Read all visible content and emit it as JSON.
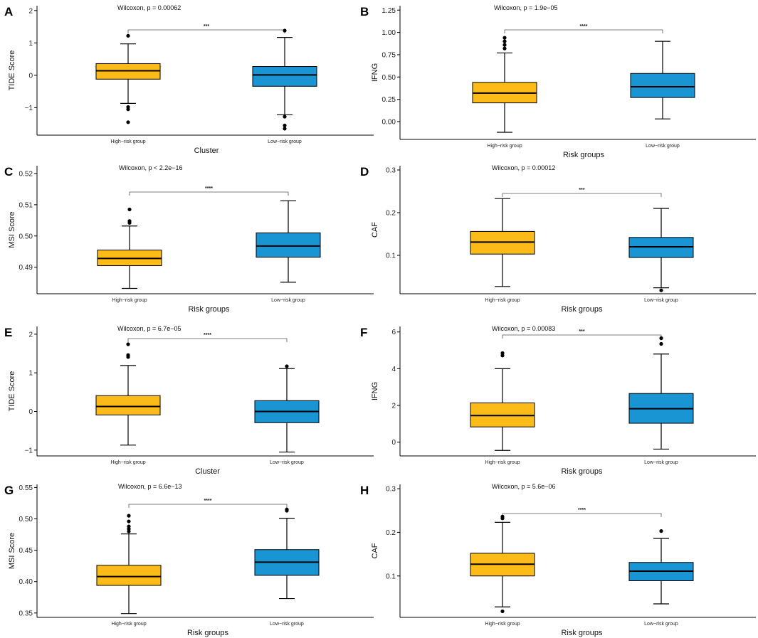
{
  "figure": {
    "background": "#ffffff"
  },
  "colors": {
    "high": "#FDBB17",
    "low": "#1A95D4",
    "stroke": "#000000"
  },
  "chart_data": [
    {
      "panel": "A",
      "type": "box",
      "ylabel": "TIDE Score",
      "xlabel": "Cluster",
      "test_label": "Wilcoxon, p = 0.00062",
      "signif": "***",
      "categories": [
        "High−risk group",
        "Low−risk group"
      ],
      "yticks": [
        -1,
        0,
        1,
        2
      ],
      "ytick_labels": [
        "−1",
        "0",
        "1",
        "2"
      ],
      "ylim": [
        -1.85,
        2.15
      ],
      "boxes": [
        {
          "min": -0.87,
          "q1": -0.12,
          "median": 0.14,
          "q3": 0.36,
          "max": 0.97,
          "outliers": [
            1.22,
            -0.98,
            -1.05,
            -1.45
          ]
        },
        {
          "min": -1.22,
          "q1": -0.34,
          "median": 0.01,
          "q3": 0.27,
          "max": 1.17,
          "outliers": [
            1.38,
            -1.28,
            -1.55,
            -1.65
          ]
        }
      ]
    },
    {
      "panel": "B",
      "type": "box",
      "ylabel": "IFNG",
      "xlabel": "Risk groups",
      "test_label": "Wilcoxon, p = 1.9e−05",
      "signif": "****",
      "categories": [
        "High−risk group",
        "Low−risk group"
      ],
      "yticks": [
        0,
        0.25,
        0.5,
        0.75,
        1.0,
        1.25
      ],
      "ytick_labels": [
        "0.00",
        "0.25",
        "0.50",
        "0.75",
        "1.00",
        "1.25"
      ],
      "ylim": [
        -0.2,
        1.3
      ],
      "boxes": [
        {
          "min": -0.12,
          "q1": 0.21,
          "median": 0.32,
          "q3": 0.44,
          "max": 0.77,
          "outliers": [
            0.82,
            0.86,
            0.9,
            0.94
          ]
        },
        {
          "min": 0.03,
          "q1": 0.27,
          "median": 0.39,
          "q3": 0.54,
          "max": 0.9,
          "outliers": []
        }
      ]
    },
    {
      "panel": "C",
      "type": "box",
      "ylabel": "MSI Score",
      "xlabel": "Risk groups",
      "test_label": "Wilcoxon, p < 2.2e−16",
      "signif": "****",
      "categories": [
        "High−risk group",
        "Low−risk group"
      ],
      "yticks": [
        0.49,
        0.5,
        0.51,
        0.52
      ],
      "ytick_labels": [
        "0.49",
        "0.50",
        "0.51",
        "0.52"
      ],
      "ylim": [
        0.4815,
        0.5225
      ],
      "boxes": [
        {
          "min": 0.4832,
          "q1": 0.4905,
          "median": 0.4928,
          "q3": 0.4955,
          "max": 0.5032,
          "outliers": [
            0.5042,
            0.5048,
            0.5085
          ]
        },
        {
          "min": 0.4852,
          "q1": 0.4932,
          "median": 0.4968,
          "q3": 0.501,
          "max": 0.5113,
          "outliers": []
        }
      ]
    },
    {
      "panel": "D",
      "type": "box",
      "ylabel": "CAF",
      "xlabel": "Risk groups",
      "test_label": "Wilcoxon, p = 0.00012",
      "signif": "***",
      "categories": [
        "High−risk group",
        "Low−risk group"
      ],
      "yticks": [
        0.1,
        0.2,
        0.3
      ],
      "ytick_labels": [
        "0.1",
        "0.2",
        "0.3"
      ],
      "ylim": [
        0.01,
        0.31
      ],
      "boxes": [
        {
          "min": 0.027,
          "q1": 0.103,
          "median": 0.131,
          "q3": 0.156,
          "max": 0.233,
          "outliers": []
        },
        {
          "min": 0.024,
          "q1": 0.095,
          "median": 0.12,
          "q3": 0.142,
          "max": 0.21,
          "outliers": [
            0.018
          ]
        }
      ]
    },
    {
      "panel": "E",
      "type": "box",
      "ylabel": "TIDE Score",
      "xlabel": "Cluster",
      "test_label": "Wilcoxon, p = 6.7e−05",
      "signif": "****",
      "categories": [
        "High−risk group",
        "Low−risk group"
      ],
      "yticks": [
        -1,
        0,
        1,
        2
      ],
      "ytick_labels": [
        "−1",
        "0",
        "1",
        "2"
      ],
      "ylim": [
        -1.15,
        2.2
      ],
      "boxes": [
        {
          "min": -0.87,
          "q1": -0.09,
          "median": 0.13,
          "q3": 0.41,
          "max": 1.19,
          "outliers": [
            1.41,
            1.46,
            1.74
          ]
        },
        {
          "min": -1.05,
          "q1": -0.29,
          "median": 0.0,
          "q3": 0.28,
          "max": 1.11,
          "outliers": [
            1.17
          ]
        }
      ]
    },
    {
      "panel": "F",
      "type": "box",
      "ylabel": "IFNG",
      "xlabel": "Risk groups",
      "test_label": "Wilcoxon, p = 0.00083",
      "signif": "***",
      "categories": [
        "High−risk group",
        "Low−risk group"
      ],
      "yticks": [
        0,
        2,
        4,
        6
      ],
      "ytick_labels": [
        "0",
        "2",
        "4",
        "6"
      ],
      "ylim": [
        -0.75,
        6.3
      ],
      "boxes": [
        {
          "min": -0.45,
          "q1": 0.83,
          "median": 1.45,
          "q3": 2.14,
          "max": 4.0,
          "outliers": [
            4.72,
            4.85
          ]
        },
        {
          "min": -0.38,
          "q1": 1.03,
          "median": 1.82,
          "q3": 2.65,
          "max": 4.8,
          "outliers": [
            5.35,
            5.66
          ]
        }
      ]
    },
    {
      "panel": "G",
      "type": "box",
      "ylabel": "MSI Score",
      "xlabel": "Risk groups",
      "test_label": "Wilcoxon, p = 6.6e−13",
      "signif": "****",
      "categories": [
        "High−risk group",
        "Low−risk group"
      ],
      "yticks": [
        0.35,
        0.4,
        0.45,
        0.5,
        0.55
      ],
      "ytick_labels": [
        "0.35",
        "0.40",
        "0.45",
        "0.50",
        "0.55"
      ],
      "ylim": [
        0.343,
        0.555
      ],
      "boxes": [
        {
          "min": 0.349,
          "q1": 0.394,
          "median": 0.408,
          "q3": 0.426,
          "max": 0.476,
          "outliers": [
            0.48,
            0.484,
            0.488,
            0.496,
            0.505
          ]
        },
        {
          "min": 0.373,
          "q1": 0.41,
          "median": 0.431,
          "q3": 0.451,
          "max": 0.501,
          "outliers": [
            0.513,
            0.515
          ]
        }
      ]
    },
    {
      "panel": "H",
      "type": "box",
      "ylabel": "CAF",
      "xlabel": "Risk groups",
      "test_label": "Wilcoxon, p = 5.6e−06",
      "signif": "****",
      "categories": [
        "High−risk group",
        "Low−risk group"
      ],
      "yticks": [
        0.1,
        0.2,
        0.3
      ],
      "ytick_labels": [
        "0.1",
        "0.2",
        "0.3"
      ],
      "ylim": [
        0.005,
        0.31
      ],
      "boxes": [
        {
          "min": 0.029,
          "q1": 0.1,
          "median": 0.127,
          "q3": 0.152,
          "max": 0.223,
          "outliers": [
            0.019,
            0.232,
            0.236
          ]
        },
        {
          "min": 0.036,
          "q1": 0.089,
          "median": 0.111,
          "q3": 0.131,
          "max": 0.186,
          "outliers": [
            0.203
          ]
        }
      ]
    }
  ]
}
